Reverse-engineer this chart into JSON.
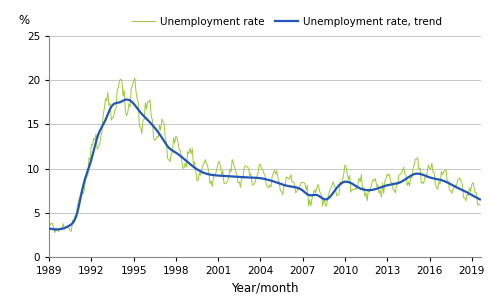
{
  "title": "",
  "ylabel": "%",
  "xlabel": "Year/month",
  "legend_labels": [
    "Unemployment rate",
    "Unemployment rate, trend"
  ],
  "line_color_actual": "#99cc33",
  "line_color_trend": "#2255bb",
  "ylim": [
    0,
    25
  ],
  "yticks": [
    0,
    5,
    10,
    15,
    20,
    25
  ],
  "background_color": "#ffffff",
  "grid_color": "#c8c8c8",
  "figsize": [
    4.91,
    3.02
  ],
  "dpi": 100
}
